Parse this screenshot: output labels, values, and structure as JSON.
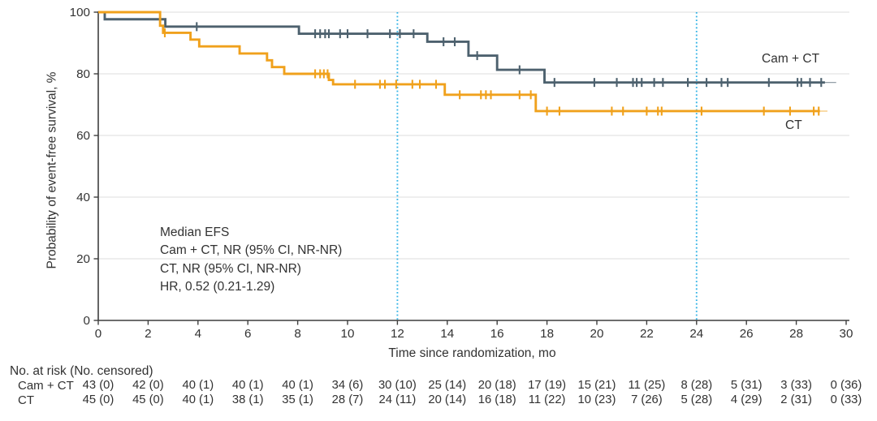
{
  "chart_data": {
    "type": "line",
    "subtype": "kaplan-meier-step",
    "title": "",
    "xlabel": "Time since randomization, mo",
    "ylabel": "Probability of event-free survival, %",
    "xlim": [
      0,
      30
    ],
    "ylim": [
      0,
      100
    ],
    "x_ticks": [
      0,
      2,
      4,
      6,
      8,
      10,
      12,
      14,
      16,
      18,
      20,
      22,
      24,
      26,
      28,
      30
    ],
    "y_ticks": [
      0,
      20,
      40,
      60,
      80,
      100
    ],
    "grid": "horizontal",
    "grid_color": "#e9e9e9",
    "axis_color": "#3e3e3e",
    "text_color": "#323232",
    "reference_lines_x": [
      12,
      24
    ],
    "reference_line_color": "#35b4e6",
    "legend_position": "labels-at-line-ends",
    "series": [
      {
        "name": "Cam + CT",
        "color": "#4d616e",
        "step_points": [
          [
            0,
            100
          ],
          [
            0.26,
            100
          ],
          [
            0.26,
            97.7
          ],
          [
            2.69,
            97.7
          ],
          [
            2.69,
            95.3
          ],
          [
            8.05,
            95.3
          ],
          [
            8.05,
            93.0
          ],
          [
            13.2,
            93.0
          ],
          [
            13.2,
            90.4
          ],
          [
            14.85,
            90.4
          ],
          [
            14.85,
            85.9
          ],
          [
            16.0,
            85.9
          ],
          [
            16.0,
            81.3
          ],
          [
            17.9,
            81.3
          ],
          [
            17.9,
            77.2
          ],
          [
            29.15,
            77.2
          ]
        ],
        "tail_end": 29.6,
        "censor_times": [
          3.95,
          8.7,
          8.9,
          9.1,
          9.25,
          9.7,
          10.0,
          10.8,
          11.7,
          12.1,
          12.65,
          13.85,
          14.3,
          15.2,
          16.9,
          18.3,
          19.9,
          20.8,
          21.45,
          21.6,
          21.8,
          22.3,
          22.65,
          23.65,
          24.4,
          25.0,
          25.25,
          26.9,
          28.05,
          28.2,
          28.55,
          29.0
        ],
        "final_value": 77.2
      },
      {
        "name": "CT",
        "color": "#f0a11c",
        "step_points": [
          [
            0,
            100
          ],
          [
            2.48,
            100
          ],
          [
            2.48,
            95.6
          ],
          [
            2.6,
            95.6
          ],
          [
            2.6,
            93.3
          ],
          [
            3.7,
            93.3
          ],
          [
            3.7,
            91.1
          ],
          [
            4.05,
            91.1
          ],
          [
            4.05,
            88.9
          ],
          [
            5.67,
            88.9
          ],
          [
            5.67,
            86.6
          ],
          [
            6.77,
            86.6
          ],
          [
            6.77,
            84.4
          ],
          [
            6.97,
            84.4
          ],
          [
            6.97,
            82.2
          ],
          [
            7.46,
            82.2
          ],
          [
            7.46,
            80.0
          ],
          [
            9.25,
            80.0
          ],
          [
            9.25,
            78.0
          ],
          [
            9.42,
            78.0
          ],
          [
            9.42,
            76.6
          ],
          [
            13.9,
            76.6
          ],
          [
            13.9,
            73.2
          ],
          [
            17.55,
            73.2
          ],
          [
            17.55,
            67.9
          ],
          [
            28.95,
            67.9
          ]
        ],
        "tail_end": 29.25,
        "censor_times": [
          2.67,
          8.7,
          8.9,
          9.05,
          9.2,
          10.3,
          11.3,
          11.5,
          11.95,
          12.6,
          12.9,
          13.55,
          14.5,
          15.35,
          15.55,
          15.75,
          16.9,
          17.35,
          18.0,
          18.5,
          20.6,
          21.05,
          22.0,
          22.45,
          22.6,
          24.2,
          26.7,
          27.75,
          28.7,
          28.9
        ],
        "final_value": 67.9
      }
    ]
  },
  "annotation": {
    "lines": [
      "Median EFS",
      "Cam + CT, NR (95% CI, NR-NR)",
      "CT, NR (95% CI, NR-NR)",
      "HR, 0.52 (0.21-1.29)"
    ]
  },
  "curve_labels": {
    "cam_ct": "Cam + CT",
    "ct": "CT"
  },
  "risk_table": {
    "title": "No. at risk (No. censored)",
    "months": [
      0,
      2,
      4,
      6,
      8,
      10,
      12,
      14,
      16,
      18,
      20,
      22,
      24,
      26,
      28,
      30
    ],
    "rows": [
      {
        "label": "Cam + CT",
        "values": [
          "43 (0)",
          "42 (0)",
          "40 (1)",
          "40 (1)",
          "40 (1)",
          "34 (6)",
          "30 (10)",
          "25 (14)",
          "20 (18)",
          "17 (19)",
          "15 (21)",
          "11 (25)",
          "8 (28)",
          "5 (31)",
          "3 (33)",
          "0 (36)"
        ]
      },
      {
        "label": "CT",
        "values": [
          "45 (0)",
          "45 (0)",
          "40 (1)",
          "38 (1)",
          "35 (1)",
          "28 (7)",
          "24 (11)",
          "20 (14)",
          "16 (18)",
          "11 (22)",
          "10 (23)",
          "7 (26)",
          "5 (28)",
          "4 (29)",
          "2 (31)",
          "0 (33)"
        ]
      }
    ]
  }
}
